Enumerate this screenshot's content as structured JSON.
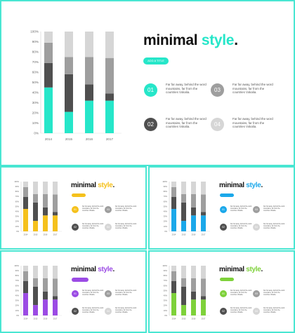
{
  "colors": {
    "teal": "#26e6c9",
    "yellow": "#f5c11c",
    "blue": "#1ba8ea",
    "purple": "#9b4be4",
    "green": "#7ed13a",
    "dark": "#4f4f4f",
    "mid": "#9e9e9e",
    "light": "#d6d6d6",
    "border": "#49e6d2"
  },
  "slide": {
    "title_main": "minimal",
    "title_accent": "style",
    "title_dot": ".",
    "pill_text": "ADD A TITLE",
    "items": [
      {
        "num": "01",
        "text": "Far far away, behind the word mountains, far from the countries Vokalia."
      },
      {
        "num": "03",
        "text": "Far far away, behind the word mountains, far from the countries Vokalia."
      },
      {
        "num": "02",
        "text": "Far far away, behind the word mountains, far from the countries Vokalia."
      },
      {
        "num": "04",
        "text": "Far far away, behind the word mountains, far from the countries Vokalia."
      }
    ]
  },
  "chart_data": {
    "type": "bar",
    "stacked": true,
    "categories": [
      "2014",
      "2015",
      "2016",
      "2017"
    ],
    "yticks": [
      "0%",
      "10%",
      "20%",
      "30%",
      "40%",
      "50%",
      "60%",
      "70%",
      "80%",
      "90%",
      "100%"
    ],
    "ylim": [
      0,
      100
    ],
    "series": [
      {
        "color": "accent",
        "values": [
          45,
          21,
          32,
          32
        ]
      },
      {
        "color": "dark",
        "values": [
          24,
          37,
          16,
          7
        ]
      },
      {
        "color": "mid",
        "values": [
          20,
          17,
          27,
          35
        ]
      },
      {
        "color": "light",
        "values": [
          11,
          25,
          25,
          26
        ]
      }
    ]
  }
}
